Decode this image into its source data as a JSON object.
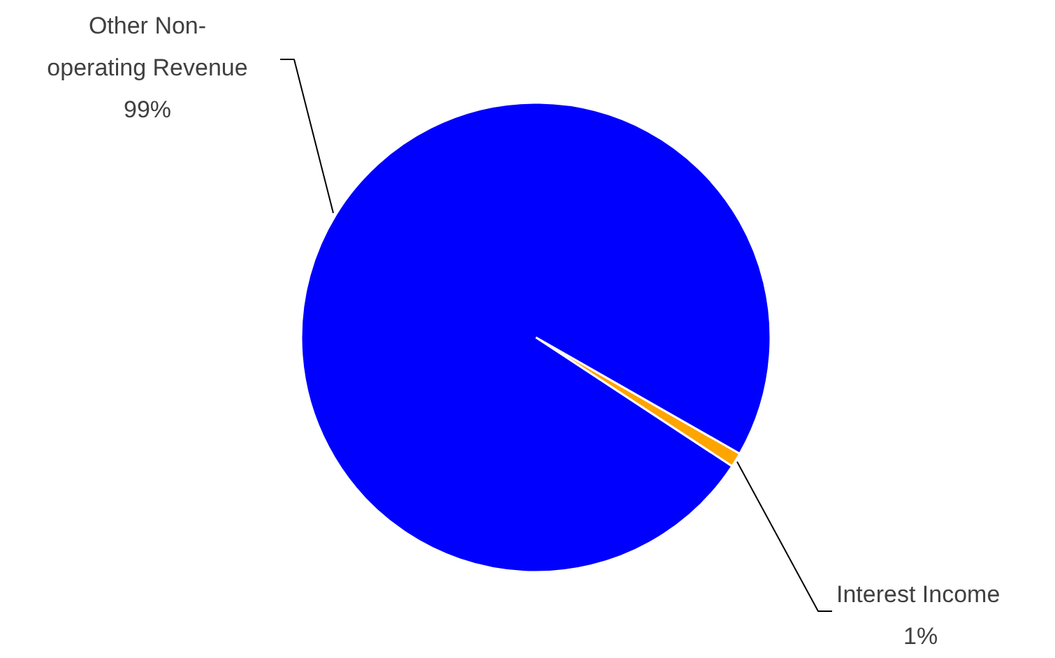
{
  "chart_data": {
    "type": "pie",
    "categories": [
      "Interest Income",
      "Other Non-operating Revenue"
    ],
    "values": [
      1,
      99
    ],
    "colors": [
      "#ffa500",
      "#0000ff"
    ],
    "value_labels": [
      "1%",
      "99%"
    ]
  }
}
